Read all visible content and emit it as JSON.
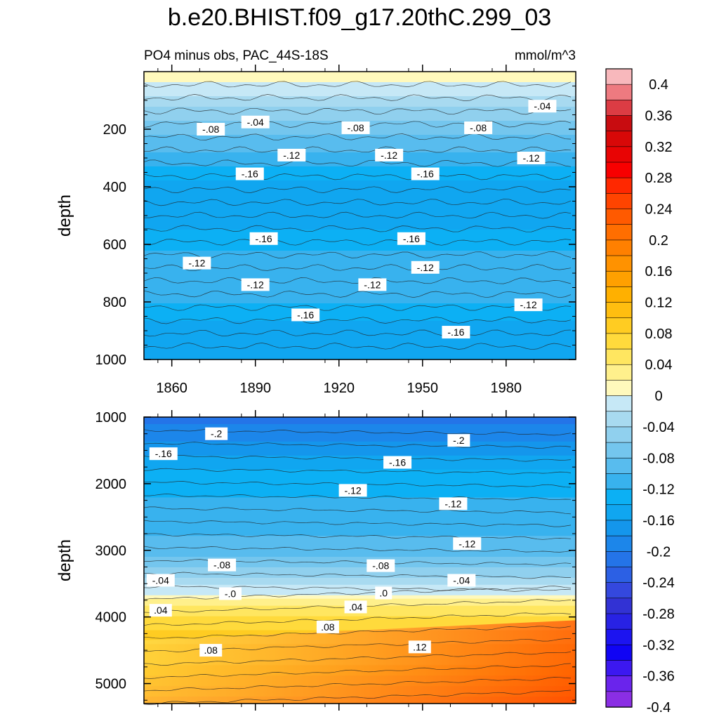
{
  "chart_data": {
    "type": "heatmap",
    "title": "b.e20.BHIST.f09_g17.20thC.299_03",
    "subtitle_left": "PO4 minus obs, PAC_44S-18S",
    "units": "mmol/m^3",
    "x": {
      "range": [
        1850,
        2005
      ],
      "ticks": [
        1860,
        1890,
        1920,
        1950,
        1980
      ]
    },
    "panels": [
      {
        "name": "upper",
        "ylabel": "depth",
        "ylim": [
          0,
          1000
        ],
        "yticks": [
          200,
          400,
          600,
          800,
          1000
        ],
        "layers": [
          {
            "depth": 20,
            "value": 0.0
          },
          {
            "depth": 60,
            "value": -0.02
          },
          {
            "depth": 100,
            "value": -0.04
          },
          {
            "depth": 150,
            "value": -0.06
          },
          {
            "depth": 200,
            "value": -0.08
          },
          {
            "depth": 250,
            "value": -0.1
          },
          {
            "depth": 300,
            "value": -0.12
          },
          {
            "depth": 350,
            "value": -0.14
          },
          {
            "depth": 400,
            "value": -0.16
          },
          {
            "depth": 450,
            "value": -0.17
          },
          {
            "depth": 500,
            "value": -0.16
          },
          {
            "depth": 550,
            "value": -0.15
          },
          {
            "depth": 620,
            "value": -0.13
          },
          {
            "depth": 700,
            "value": -0.12
          },
          {
            "depth": 780,
            "value": -0.12
          },
          {
            "depth": 840,
            "value": -0.14
          },
          {
            "depth": 900,
            "value": -0.16
          },
          {
            "depth": 1000,
            "value": -0.17
          }
        ],
        "contour_labels": [
          {
            "x": 1890,
            "depth": 175,
            "text": "-.04"
          },
          {
            "x": 1874,
            "depth": 200,
            "text": "-.08"
          },
          {
            "x": 1926,
            "depth": 195,
            "text": "-.08"
          },
          {
            "x": 1970,
            "depth": 195,
            "text": "-.08"
          },
          {
            "x": 1993,
            "depth": 120,
            "text": "-.04"
          },
          {
            "x": 1903,
            "depth": 290,
            "text": "-.12"
          },
          {
            "x": 1938,
            "depth": 290,
            "text": "-.12"
          },
          {
            "x": 1989,
            "depth": 300,
            "text": "-.12"
          },
          {
            "x": 1888,
            "depth": 355,
            "text": "-.16"
          },
          {
            "x": 1951,
            "depth": 355,
            "text": "-.16"
          },
          {
            "x": 1893,
            "depth": 580,
            "text": "-.16"
          },
          {
            "x": 1946,
            "depth": 580,
            "text": "-.16"
          },
          {
            "x": 1869,
            "depth": 665,
            "text": "-.12"
          },
          {
            "x": 1890,
            "depth": 740,
            "text": "-.12"
          },
          {
            "x": 1932,
            "depth": 740,
            "text": "-.12"
          },
          {
            "x": 1951,
            "depth": 680,
            "text": "-.12"
          },
          {
            "x": 1988,
            "depth": 810,
            "text": "-.12"
          },
          {
            "x": 1908,
            "depth": 845,
            "text": "-.16"
          },
          {
            "x": 1962,
            "depth": 905,
            "text": "-.16"
          }
        ]
      },
      {
        "name": "lower",
        "ylabel": "depth",
        "ylim": [
          1000,
          5300
        ],
        "yticks": [
          1000,
          2000,
          3000,
          4000,
          5000
        ],
        "layers": [
          {
            "depth": 1000,
            "value": -0.22
          },
          {
            "depth": 1200,
            "value": -0.2
          },
          {
            "depth": 1500,
            "value": -0.18
          },
          {
            "depth": 1800,
            "value": -0.15
          },
          {
            "depth": 2200,
            "value": -0.13
          },
          {
            "depth": 2800,
            "value": -0.11
          },
          {
            "depth": 3000,
            "value": -0.1
          },
          {
            "depth": 3200,
            "value": -0.08
          },
          {
            "depth": 3350,
            "value": -0.06
          },
          {
            "depth": 3450,
            "value": -0.04
          },
          {
            "depth": 3600,
            "value": -0.02
          },
          {
            "depth": 3700,
            "value": 0.0
          },
          {
            "depth": 3850,
            "value": 0.03
          },
          {
            "depth": 4000,
            "value": 0.05
          },
          {
            "depth": 4300,
            "value": 0.08
          },
          {
            "depth": 4700,
            "value": 0.11
          },
          {
            "depth": 5000,
            "value": 0.14
          },
          {
            "depth": 5300,
            "value": 0.19
          }
        ],
        "contour_labels": [
          {
            "x": 1876,
            "depth": 1250,
            "text": "-.2"
          },
          {
            "x": 1963,
            "depth": 1350,
            "text": "-.2"
          },
          {
            "x": 1857,
            "depth": 1550,
            "text": "-.16"
          },
          {
            "x": 1941,
            "depth": 1680,
            "text": "-.16"
          },
          {
            "x": 1925,
            "depth": 2100,
            "text": "-.12"
          },
          {
            "x": 1961,
            "depth": 2300,
            "text": "-.12"
          },
          {
            "x": 1966,
            "depth": 2900,
            "text": "-.12"
          },
          {
            "x": 1878,
            "depth": 3220,
            "text": "-.08"
          },
          {
            "x": 1935,
            "depth": 3230,
            "text": "-.08"
          },
          {
            "x": 1856,
            "depth": 3450,
            "text": "-.04"
          },
          {
            "x": 1964,
            "depth": 3450,
            "text": "-.04"
          },
          {
            "x": 1881,
            "depth": 3650,
            "text": "-.0"
          },
          {
            "x": 1936,
            "depth": 3640,
            "text": ".0"
          },
          {
            "x": 1856,
            "depth": 3900,
            "text": ".04"
          },
          {
            "x": 1926,
            "depth": 3850,
            "text": ".04"
          },
          {
            "x": 1916,
            "depth": 4150,
            "text": ".08"
          },
          {
            "x": 1874,
            "depth": 4500,
            "text": ".08"
          },
          {
            "x": 1949,
            "depth": 4450,
            "text": ".12"
          }
        ]
      }
    ],
    "colorbar": {
      "ticks": [
        "0.4",
        "0.36",
        "0.32",
        "0.28",
        "0.24",
        "0.2",
        "0.16",
        "0.12",
        "0.08",
        "0.04",
        "0",
        "-0.04",
        "-0.08",
        "-0.12",
        "-0.16",
        "-0.2",
        "-0.24",
        "-0.28",
        "-0.32",
        "-0.36",
        "-0.4"
      ],
      "levels_top_to_bottom": [
        "#f8b8bc",
        "#ee7a80",
        "#dc3c44",
        "#c80c10",
        "#d80808",
        "#e80404",
        "#f80000",
        "#ff2800",
        "#ff4400",
        "#ff5a00",
        "#ff6e00",
        "#ff8000",
        "#ff9200",
        "#ffa000",
        "#ffb000",
        "#ffbe10",
        "#ffcc22",
        "#ffda3c",
        "#ffe660",
        "#fff08c",
        "#fff9bc",
        "#c6e8f6",
        "#a8daf0",
        "#90d0ee",
        "#74c6ee",
        "#58bcee",
        "#38b2ee",
        "#0cb0f4",
        "#10a6f0",
        "#1496ec",
        "#1c86ea",
        "#2474e8",
        "#2c60e4",
        "#3448de",
        "#3232d4",
        "#2822e4",
        "#1c14f0",
        "#1004f4",
        "#3c18f0",
        "#6a24ec",
        "#8a2ee4"
      ]
    }
  }
}
